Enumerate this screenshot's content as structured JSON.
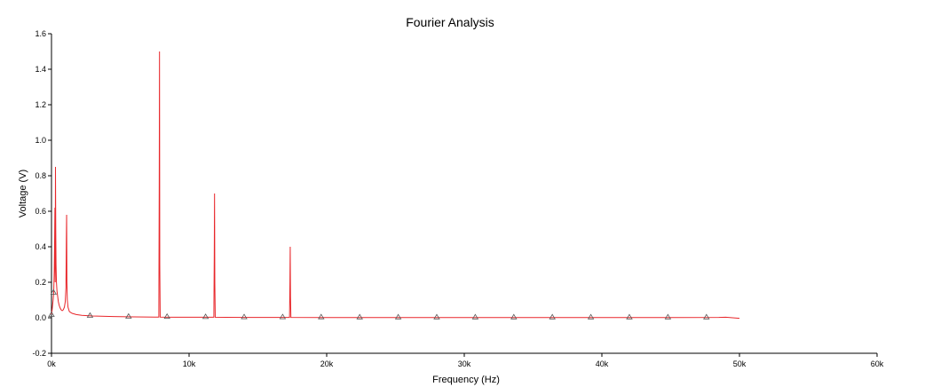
{
  "chart_data": {
    "type": "line",
    "title": "Fourier Analysis",
    "xlabel": "Frequency (Hz)",
    "ylabel": "Voltage (V)",
    "xlim": [
      0,
      60000
    ],
    "ylim": [
      -0.2,
      1.6
    ],
    "xticks": [
      {
        "value": 0,
        "label": "0k"
      },
      {
        "value": 10000,
        "label": "10k"
      },
      {
        "value": 20000,
        "label": "20k"
      },
      {
        "value": 30000,
        "label": "30k"
      },
      {
        "value": 40000,
        "label": "40k"
      },
      {
        "value": 50000,
        "label": "50k"
      },
      {
        "value": 60000,
        "label": "60k"
      }
    ],
    "yticks": [
      {
        "value": -0.2,
        "label": "-0.2"
      },
      {
        "value": 0.0,
        "label": "0.0"
      },
      {
        "value": 0.2,
        "label": "0.2"
      },
      {
        "value": 0.4,
        "label": "0.4"
      },
      {
        "value": 0.6,
        "label": "0.6"
      },
      {
        "value": 0.8,
        "label": "0.8"
      },
      {
        "value": 1.0,
        "label": "1.0"
      },
      {
        "value": 1.2,
        "label": "1.2"
      },
      {
        "value": 1.4,
        "label": "1.4"
      },
      {
        "value": 1.6,
        "label": "1.6"
      }
    ],
    "grid": false,
    "series": [
      {
        "color": "#e8262a",
        "points": [
          [
            0,
            0.02
          ],
          [
            40,
            0.04
          ],
          [
            80,
            0.07
          ],
          [
            120,
            0.1
          ],
          [
            160,
            0.14
          ],
          [
            200,
            0.26
          ],
          [
            230,
            0.45
          ],
          [
            250,
            0.62
          ],
          [
            270,
            0.2
          ],
          [
            290,
            0.85
          ],
          [
            310,
            0.5
          ],
          [
            330,
            0.3
          ],
          [
            360,
            0.2
          ],
          [
            400,
            0.15
          ],
          [
            450,
            0.12
          ],
          [
            500,
            0.09
          ],
          [
            560,
            0.07
          ],
          [
            630,
            0.055
          ],
          [
            700,
            0.045
          ],
          [
            780,
            0.04
          ],
          [
            860,
            0.045
          ],
          [
            940,
            0.06
          ],
          [
            1000,
            0.09
          ],
          [
            1050,
            0.17
          ],
          [
            1080,
            0.44
          ],
          [
            1100,
            0.58
          ],
          [
            1120,
            0.2
          ],
          [
            1150,
            0.1
          ],
          [
            1200,
            0.06
          ],
          [
            1300,
            0.035
          ],
          [
            1500,
            0.025
          ],
          [
            1800,
            0.018
          ],
          [
            2200,
            0.014
          ],
          [
            3000,
            0.01
          ],
          [
            4500,
            0.007
          ],
          [
            6000,
            0.005
          ],
          [
            7500,
            0.004
          ],
          [
            7800,
            0.004
          ],
          [
            7830,
            0.75
          ],
          [
            7850,
            1.5
          ],
          [
            7870,
            0.3
          ],
          [
            7900,
            0.004
          ],
          [
            9000,
            0.003
          ],
          [
            11000,
            0.003
          ],
          [
            11800,
            0.003
          ],
          [
            11830,
            0.35
          ],
          [
            11850,
            0.7
          ],
          [
            11870,
            0.2
          ],
          [
            11900,
            0.003
          ],
          [
            14000,
            0.002
          ],
          [
            16000,
            0.002
          ],
          [
            17300,
            0.002
          ],
          [
            17330,
            0.2
          ],
          [
            17350,
            0.4
          ],
          [
            17370,
            0.12
          ],
          [
            17400,
            0.002
          ],
          [
            20000,
            0.0015
          ],
          [
            25000,
            0.001
          ],
          [
            30000,
            0.001
          ],
          [
            35000,
            0.001
          ],
          [
            40000,
            0.001
          ],
          [
            45000,
            0.001
          ],
          [
            48500,
            0.002
          ],
          [
            49000,
            0.003
          ],
          [
            50000,
            -0.003
          ]
        ],
        "markers": [
          [
            0,
            0.015
          ],
          [
            150,
            0.14
          ],
          [
            2800,
            0.01
          ],
          [
            5600,
            0.005
          ],
          [
            8400,
            0.004
          ],
          [
            11200,
            0.003
          ],
          [
            14000,
            0.002
          ],
          [
            16800,
            0.002
          ],
          [
            19600,
            0.0015
          ],
          [
            22400,
            0.001
          ],
          [
            25200,
            0.001
          ],
          [
            28000,
            0.001
          ],
          [
            30800,
            0.001
          ],
          [
            33600,
            0.001
          ],
          [
            36400,
            0.001
          ],
          [
            39200,
            0.001
          ],
          [
            42000,
            0.001
          ],
          [
            44800,
            0.001
          ],
          [
            47600,
            0.001
          ]
        ]
      }
    ]
  }
}
